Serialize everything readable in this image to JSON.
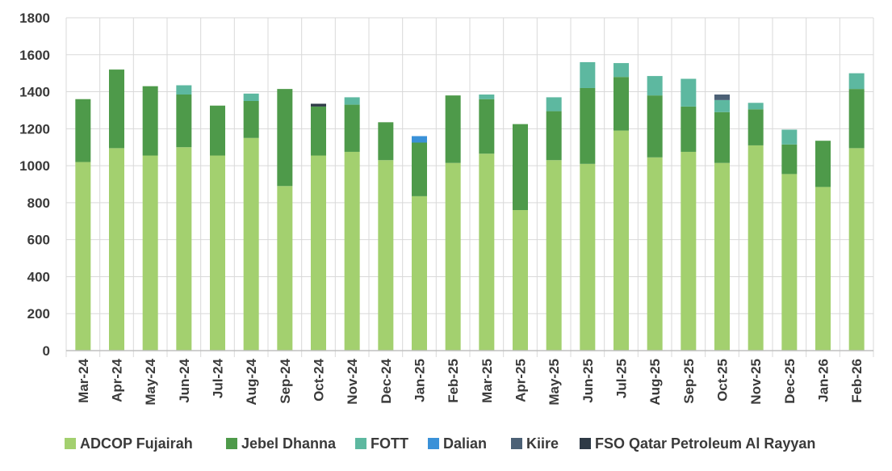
{
  "chart_data": {
    "type": "bar",
    "stacked": true,
    "title": "",
    "xlabel": "",
    "ylabel": "",
    "ylim": [
      0,
      1800
    ],
    "yticks": [
      0,
      200,
      400,
      600,
      800,
      1000,
      1200,
      1400,
      1600,
      1800
    ],
    "categories": [
      "Mar-24",
      "Apr-24",
      "May-24",
      "Jun-24",
      "Jul-24",
      "Aug-24",
      "Sep-24",
      "Oct-24",
      "Nov-24",
      "Dec-24",
      "Jan-25",
      "Feb-25",
      "Mar-25",
      "Apr-25",
      "May-25",
      "Jun-25",
      "Jul-25",
      "Aug-25",
      "Sep-25",
      "Oct-25",
      "Nov-25",
      "Dec-25",
      "Jan-26",
      "Feb-26"
    ],
    "series": [
      {
        "name": "ADCOP Fujairah",
        "color": "#a3d06f",
        "values": [
          1020,
          1095,
          1055,
          1100,
          1055,
          1150,
          890,
          1055,
          1075,
          1030,
          835,
          1015,
          1065,
          760,
          1030,
          1010,
          1190,
          1045,
          1075,
          1015,
          1110,
          955,
          885,
          1095
        ]
      },
      {
        "name": "Jebel Dhanna",
        "color": "#4e9a4a",
        "values": [
          340,
          425,
          375,
          285,
          270,
          200,
          525,
          265,
          255,
          205,
          290,
          365,
          295,
          465,
          265,
          410,
          290,
          335,
          245,
          275,
          195,
          160,
          250,
          320
        ]
      },
      {
        "name": "FOTT",
        "color": "#5db8a0",
        "values": [
          0,
          0,
          0,
          50,
          0,
          40,
          0,
          0,
          40,
          0,
          0,
          0,
          25,
          0,
          75,
          140,
          75,
          105,
          150,
          65,
          35,
          80,
          0,
          85
        ]
      },
      {
        "name": "Dalian",
        "color": "#3a91d8",
        "values": [
          0,
          0,
          0,
          0,
          0,
          0,
          0,
          0,
          0,
          0,
          35,
          0,
          0,
          0,
          0,
          0,
          0,
          0,
          0,
          0,
          0,
          0,
          0,
          0
        ]
      },
      {
        "name": "Kiire",
        "color": "#4c6176",
        "values": [
          0,
          0,
          0,
          0,
          0,
          0,
          0,
          0,
          0,
          0,
          0,
          0,
          0,
          0,
          0,
          0,
          0,
          0,
          0,
          30,
          0,
          0,
          0,
          0
        ]
      },
      {
        "name": "FSO Qatar Petroleum Al Rayyan",
        "color": "#2e3a46",
        "values": [
          0,
          0,
          0,
          0,
          0,
          0,
          0,
          15,
          0,
          0,
          0,
          0,
          0,
          0,
          0,
          0,
          0,
          0,
          0,
          0,
          0,
          0,
          0,
          0
        ]
      }
    ],
    "grid": true,
    "legend": "bottom"
  }
}
